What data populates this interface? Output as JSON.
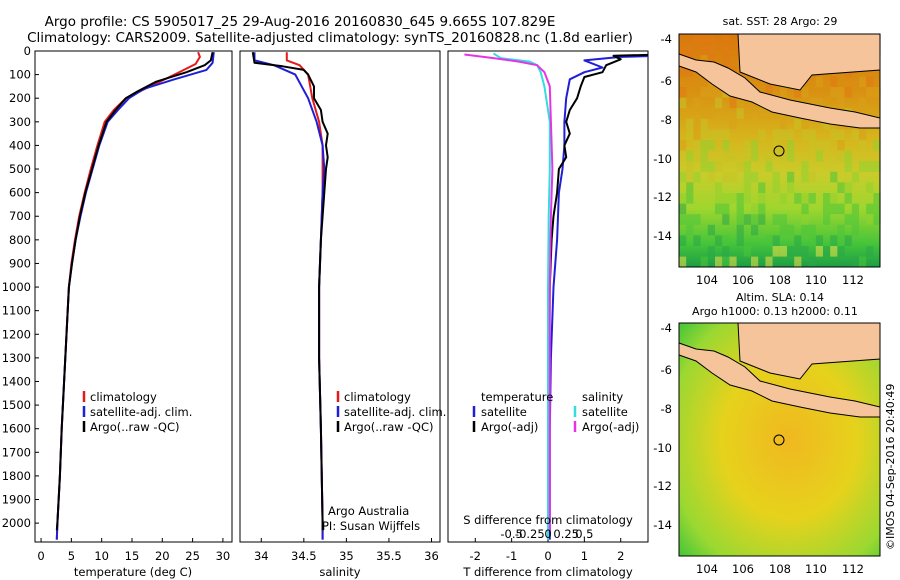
{
  "header": {
    "line1": "Argo profile: CS 5905017_25 29-Aug-2016 20160830_645 9.665S 107.829E",
    "line2": "Climatology: CARS2009. Satellite-adjusted climatology: synTS_20160828.nc (1.8d earlier)"
  },
  "colors": {
    "climatology": "#e41a1c",
    "satellite": "#1f1fd6",
    "argo": "#000000",
    "sat_cyan": "#33dddd",
    "argo_magenta": "#e633e6",
    "land": "#f5c49b"
  },
  "depth_axis": {
    "ticks": [
      0,
      100,
      200,
      300,
      400,
      500,
      600,
      700,
      800,
      900,
      1000,
      1100,
      1200,
      1300,
      1400,
      1500,
      1600,
      1700,
      1800,
      1900,
      2000
    ],
    "range": [
      0,
      2080
    ]
  },
  "chart_data": [
    {
      "type": "line",
      "id": "temperature",
      "xlabel": "temperature (deg C)",
      "xlim": [
        -1,
        31.5
      ],
      "xticks": [
        0,
        5,
        10,
        15,
        20,
        25,
        30
      ],
      "legend": [
        "climatology",
        "satellite-adj. clim.",
        "Argo(..raw -QC)"
      ],
      "series": [
        {
          "name": "climatology",
          "color": "#e41a1c",
          "points": [
            [
              25.9,
              5
            ],
            [
              26.2,
              25
            ],
            [
              25.5,
              55
            ],
            [
              22,
              100
            ],
            [
              18,
              150
            ],
            [
              14,
              200
            ],
            [
              12,
              250
            ],
            [
              10.5,
              300
            ],
            [
              9.3,
              400
            ],
            [
              8.2,
              500
            ],
            [
              7.2,
              600
            ],
            [
              6.3,
              700
            ],
            [
              5.6,
              800
            ],
            [
              5.0,
              900
            ],
            [
              4.6,
              1000
            ],
            [
              4.2,
              1200
            ],
            [
              3.8,
              1400
            ],
            [
              3.4,
              1600
            ],
            [
              3.1,
              1800
            ],
            [
              2.7,
              2000
            ],
            [
              2.6,
              2070
            ]
          ]
        },
        {
          "name": "satellite-adj. clim.",
          "color": "#1f1fd6",
          "points": [
            [
              28.5,
              5
            ],
            [
              28.3,
              50
            ],
            [
              27.3,
              80
            ],
            [
              22,
              120
            ],
            [
              17,
              160
            ],
            [
              14.5,
              200
            ],
            [
              12.7,
              250
            ],
            [
              11.0,
              300
            ],
            [
              9.6,
              400
            ],
            [
              8.5,
              500
            ],
            [
              7.4,
              600
            ],
            [
              6.5,
              700
            ],
            [
              5.7,
              800
            ],
            [
              5.1,
              900
            ],
            [
              4.6,
              1000
            ],
            [
              4.2,
              1200
            ],
            [
              3.8,
              1400
            ],
            [
              3.4,
              1600
            ],
            [
              3.1,
              1800
            ],
            [
              2.7,
              2000
            ],
            [
              2.6,
              2070
            ]
          ]
        },
        {
          "name": "Argo(..raw -QC)",
          "color": "#000000",
          "points": [
            [
              28.3,
              5
            ],
            [
              28.0,
              40
            ],
            [
              27.0,
              60
            ],
            [
              24,
              90
            ],
            [
              19,
              130
            ],
            [
              16,
              170
            ],
            [
              14,
              200
            ],
            [
              12.3,
              250
            ],
            [
              10.8,
              300
            ],
            [
              9.5,
              400
            ],
            [
              8.4,
              500
            ],
            [
              7.3,
              600
            ],
            [
              6.4,
              700
            ],
            [
              5.7,
              800
            ],
            [
              5.1,
              900
            ],
            [
              4.6,
              1000
            ],
            [
              4.2,
              1200
            ],
            [
              3.8,
              1400
            ],
            [
              3.4,
              1600
            ],
            [
              3.1,
              1800
            ],
            [
              2.7,
              2000
            ],
            [
              2.6,
              2030
            ]
          ]
        }
      ]
    },
    {
      "type": "line",
      "id": "salinity",
      "xlabel": "salinity",
      "xlim": [
        33.75,
        36.1
      ],
      "xticks": [
        34,
        34.5,
        35,
        35.5,
        36
      ],
      "legend": [
        "climatology",
        "satellite-adj. clim.",
        "Argo(..raw -QC)"
      ],
      "annotations": [
        "Argo Australia",
        "PI: Susan Wijffels"
      ],
      "series": [
        {
          "name": "climatology",
          "color": "#e41a1c",
          "points": [
            [
              34.3,
              5
            ],
            [
              34.3,
              40
            ],
            [
              34.45,
              60
            ],
            [
              34.55,
              100
            ],
            [
              34.6,
              200
            ],
            [
              34.68,
              300
            ],
            [
              34.72,
              400
            ],
            [
              34.72,
              600
            ],
            [
              34.7,
              800
            ],
            [
              34.68,
              1000
            ],
            [
              34.68,
              1300
            ],
            [
              34.7,
              1600
            ],
            [
              34.72,
              2000
            ],
            [
              34.72,
              2070
            ]
          ]
        },
        {
          "name": "satellite-adj. clim.",
          "color": "#1f1fd6",
          "points": [
            [
              33.92,
              5
            ],
            [
              33.92,
              40
            ],
            [
              34.15,
              60
            ],
            [
              34.4,
              100
            ],
            [
              34.55,
              200
            ],
            [
              34.65,
              300
            ],
            [
              34.72,
              400
            ],
            [
              34.74,
              500
            ],
            [
              34.72,
              600
            ],
            [
              34.7,
              800
            ],
            [
              34.68,
              1000
            ],
            [
              34.68,
              1300
            ],
            [
              34.7,
              1600
            ],
            [
              34.72,
              2000
            ],
            [
              34.72,
              2070
            ]
          ]
        },
        {
          "name": "Argo(..raw -QC)",
          "color": "#000000",
          "points": [
            [
              33.9,
              5
            ],
            [
              33.92,
              50
            ],
            [
              34.25,
              65
            ],
            [
              34.5,
              80
            ],
            [
              34.55,
              100
            ],
            [
              34.62,
              150
            ],
            [
              34.62,
              200
            ],
            [
              34.7,
              250
            ],
            [
              34.72,
              300
            ],
            [
              34.78,
              350
            ],
            [
              34.76,
              400
            ],
            [
              34.78,
              450
            ],
            [
              34.76,
              500
            ],
            [
              34.74,
              600
            ],
            [
              34.72,
              700
            ],
            [
              34.7,
              800
            ],
            [
              34.68,
              1000
            ],
            [
              34.68,
              1300
            ],
            [
              34.7,
              1600
            ],
            [
              34.72,
              2000
            ],
            [
              34.72,
              2030
            ]
          ]
        }
      ]
    },
    {
      "type": "line",
      "id": "difference",
      "xlabel": "T difference from climatology",
      "xlabel_top": "S difference from climatology",
      "xlim": [
        -2.75,
        2.75
      ],
      "xticks": [
        -2,
        -1,
        0,
        1,
        2
      ],
      "xticks_s": [
        "-0.5",
        "-0.25",
        "0",
        "0.25",
        "0.5"
      ],
      "legend_t_title": "temperature",
      "legend_s_title": "salinity",
      "legend": [
        "satellite",
        "Argo(-adj)",
        "satellite",
        "Argo(-adj)"
      ],
      "series": [
        {
          "name": "T satellite",
          "color": "#1f1fd6",
          "points": [
            [
              3.2,
              20
            ],
            [
              2.0,
              25
            ],
            [
              1.0,
              40
            ],
            [
              1.5,
              70
            ],
            [
              1.0,
              90
            ],
            [
              0.6,
              120
            ],
            [
              0.5,
              200
            ],
            [
              0.45,
              300
            ],
            [
              0.45,
              400
            ],
            [
              0.4,
              500
            ],
            [
              0.3,
              600
            ],
            [
              0.25,
              800
            ],
            [
              0.15,
              1000
            ],
            [
              0.08,
              1300
            ],
            [
              0.05,
              1600
            ],
            [
              0.05,
              2000
            ],
            [
              0.05,
              2070
            ]
          ]
        },
        {
          "name": "T Argo(-adj)",
          "color": "#000000",
          "points": [
            [
              3.2,
              15
            ],
            [
              1.8,
              20
            ],
            [
              2.0,
              35
            ],
            [
              1.6,
              60
            ],
            [
              1.5,
              90
            ],
            [
              1.0,
              110
            ],
            [
              0.9,
              150
            ],
            [
              0.8,
              200
            ],
            [
              0.6,
              250
            ],
            [
              0.5,
              300
            ],
            [
              0.6,
              350
            ],
            [
              0.45,
              400
            ],
            [
              0.5,
              450
            ],
            [
              0.3,
              500
            ],
            [
              0.25,
              600
            ],
            [
              0.15,
              700
            ],
            [
              0.1,
              800
            ],
            [
              0.05,
              1000
            ],
            [
              0.03,
              1300
            ],
            [
              0.02,
              1600
            ],
            [
              0.02,
              2000
            ],
            [
              0.02,
              2030
            ]
          ]
        },
        {
          "name": "S satellite",
          "color": "#33dddd",
          "points": [
            [
              -1.5,
              10
            ],
            [
              -1.3,
              30
            ],
            [
              -0.5,
              45
            ],
            [
              -0.3,
              60
            ],
            [
              -0.2,
              90
            ],
            [
              -0.1,
              150
            ],
            [
              0.05,
              300
            ],
            [
              0.05,
              500
            ],
            [
              0.02,
              700
            ],
            [
              0.0,
              1000
            ],
            [
              0.0,
              1500
            ],
            [
              0.0,
              2000
            ],
            [
              0.0,
              2070
            ]
          ]
        },
        {
          "name": "S Argo(-adj)",
          "color": "#e633e6",
          "points": [
            [
              -2.3,
              15
            ],
            [
              -1.5,
              30
            ],
            [
              -0.8,
              45
            ],
            [
              -0.3,
              60
            ],
            [
              -0.1,
              90
            ],
            [
              0.05,
              150
            ],
            [
              0.08,
              300
            ],
            [
              0.12,
              500
            ],
            [
              0.08,
              700
            ],
            [
              0.05,
              1000
            ],
            [
              0.05,
              1500
            ],
            [
              0.05,
              2000
            ],
            [
              0.05,
              2030
            ]
          ]
        }
      ]
    }
  ],
  "maps": [
    {
      "id": "sst",
      "title": "sat. SST: 28 Argo: 29",
      "xticks": [
        "104",
        "106",
        "108",
        "110",
        "112"
      ],
      "yticks": [
        "-4",
        "-6",
        "-8",
        "-10",
        "-12",
        "-14"
      ]
    },
    {
      "id": "sla",
      "title": "Altim. SLA: 0.14",
      "subtitle": "Argo h1000: 0.13 h2000: 0.11",
      "xticks": [
        "104",
        "106",
        "108",
        "110",
        "112"
      ],
      "yticks": [
        "-4",
        "-6",
        "-8",
        "-10",
        "-12",
        "-14"
      ]
    }
  ],
  "footer_stamp": "©IMOS 04-Sep-2016 20:40:49"
}
